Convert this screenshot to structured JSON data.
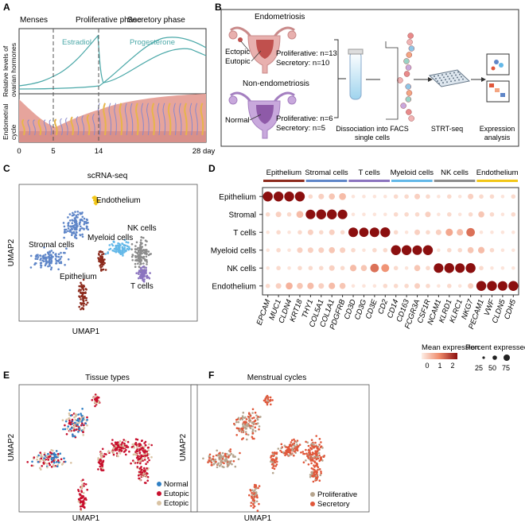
{
  "panels": {
    "A": {
      "letter": "A",
      "phases": [
        "Menses",
        "Proliferative phase",
        "Secretory phase"
      ],
      "hormones": [
        "Estradiol",
        "Progesterone"
      ],
      "y_label_top": [
        "Relative levels of",
        "ovarian hormones"
      ],
      "y_label_bottom": [
        "Endometrial",
        "cycle"
      ],
      "x_ticks": [
        "0",
        "5",
        "14",
        "28 day"
      ],
      "colors": {
        "hormone": "#4aa8a8",
        "tissue": "#d9908a",
        "vessel": "#8888cc",
        "gland": "#e7b54a"
      }
    },
    "B": {
      "letter": "B",
      "endo_title": "Endometriosis",
      "endo_labels": [
        "Ectopic",
        "Eutopic"
      ],
      "endo_counts": [
        "Proliferative: n=13",
        "Secretory: n=10"
      ],
      "non_title": "Non-endometriosis",
      "non_label": "Normal",
      "non_counts": [
        "Proliferative: n=6",
        "Secretory: n=5"
      ],
      "steps": [
        [
          "Dissociation into FACS",
          "single cells"
        ],
        [
          "STRT-seq"
        ],
        [
          "Expression",
          "analysis"
        ]
      ]
    },
    "C": {
      "letter": "C",
      "title": "scRNA-seq",
      "xlabel": "UMAP1",
      "ylabel": "UMAP2",
      "clusters": [
        {
          "label": "Endothelium",
          "color": "#f2c618"
        },
        {
          "label": "NK cells",
          "color": "#8c8c8c"
        },
        {
          "label": "Myeloid cells",
          "color": "#63b8e8"
        },
        {
          "label": "Stromal cells",
          "color": "#5f86c8"
        },
        {
          "label": "Epithelium",
          "color": "#8c2a1c"
        },
        {
          "label": "T cells",
          "color": "#8b74bf"
        }
      ]
    },
    "D": {
      "letter": "D",
      "colorbar_title": "Mean expression",
      "colorbar_ticks": [
        "0",
        "1",
        "2"
      ],
      "size_title": "Percent expressed",
      "size_ticks": [
        "25",
        "50",
        "75"
      ]
    },
    "E": {
      "letter": "E",
      "title": "Tissue types",
      "xlabel": "UMAP1",
      "ylabel": "UMAP2",
      "legend": [
        {
          "label": "Normal",
          "color": "#2f7fc4"
        },
        {
          "label": "Eutopic",
          "color": "#c8102e"
        },
        {
          "label": "Ectopic",
          "color": "#d9c3a3"
        }
      ]
    },
    "F": {
      "letter": "F",
      "title": "Menstrual cycles",
      "xlabel": "UMAP1",
      "ylabel": "UMAP2",
      "legend": [
        {
          "label": "Proliferative",
          "color": "#b5a48e"
        },
        {
          "label": "Secretory",
          "color": "#e0573a"
        }
      ]
    }
  },
  "chart_data": {
    "type": "dotplot",
    "groups": [
      {
        "name": "Epithelium",
        "color": "#8c2a1c",
        "genes": 4
      },
      {
        "name": "Stromal cells",
        "color": "#5f86c8",
        "genes": 4
      },
      {
        "name": "T cells",
        "color": "#8b74bf",
        "genes": 4
      },
      {
        "name": "Myeloid cells",
        "color": "#63b8e8",
        "genes": 4
      },
      {
        "name": "NK cells",
        "color": "#8c8c8c",
        "genes": 4
      },
      {
        "name": "Endothelium",
        "color": "#f2c618",
        "genes": 4
      }
    ],
    "genes": [
      "EPCAM",
      "MUC1",
      "CLDN4",
      "KRT18",
      "THY1",
      "COL5A1",
      "COL1A1",
      "PDGFRB",
      "CD3D",
      "CD3G",
      "CD3E",
      "CD2",
      "CD14",
      "CD163",
      "FCGR3A",
      "CSF1R",
      "NCAM1",
      "KLRD1",
      "KLRC1",
      "NKG7",
      "PECAM1",
      "VWF",
      "CLDN5",
      "CDH5"
    ],
    "cell_types": [
      "Epithelium",
      "Stromal",
      "T cells",
      "Myeloid cells",
      "NK cells",
      "Endothelium"
    ],
    "expression": [
      [
        2.2,
        2.3,
        2.2,
        2.3,
        0.2,
        0.3,
        0.4,
        0.5,
        0.1,
        0.1,
        0.1,
        0.1,
        0.2,
        0.2,
        0.3,
        0.2,
        0.1,
        0.2,
        0.1,
        0.3,
        0.2,
        0.2,
        0.1,
        0.2
      ],
      [
        0.2,
        0.3,
        0.2,
        0.5,
        2.1,
        2.3,
        2.2,
        2.1,
        0.1,
        0.1,
        0.1,
        0.1,
        0.2,
        0.2,
        0.2,
        0.3,
        0.1,
        0.2,
        0.1,
        0.2,
        0.4,
        0.2,
        0.1,
        0.2
      ],
      [
        0.1,
        0.2,
        0.1,
        0.2,
        0.3,
        0.2,
        0.3,
        0.2,
        2.1,
        2.0,
        2.1,
        2.2,
        0.2,
        0.1,
        0.3,
        0.2,
        0.3,
        0.7,
        0.5,
        1.2,
        0.1,
        0.1,
        0.1,
        0.1
      ],
      [
        0.1,
        0.2,
        0.1,
        0.3,
        0.3,
        0.3,
        0.4,
        0.3,
        0.2,
        0.1,
        0.2,
        0.2,
        2.2,
        2.2,
        2.1,
        2.2,
        0.1,
        0.2,
        0.2,
        0.4,
        0.5,
        0.2,
        0.1,
        0.1
      ],
      [
        0.1,
        0.2,
        0.1,
        0.2,
        0.2,
        0.2,
        0.3,
        0.2,
        0.5,
        0.4,
        1.2,
        0.9,
        0.2,
        0.1,
        0.4,
        0.2,
        2.1,
        2.3,
        2.2,
        2.3,
        0.2,
        0.1,
        0.1,
        0.1
      ],
      [
        0.2,
        0.3,
        0.6,
        0.4,
        0.5,
        0.3,
        0.5,
        0.4,
        0.1,
        0.1,
        0.1,
        0.2,
        0.2,
        0.2,
        0.3,
        0.2,
        0.1,
        0.2,
        0.1,
        0.3,
        2.2,
        2.3,
        2.1,
        2.2
      ]
    ],
    "percent": [
      [
        85,
        85,
        85,
        85,
        10,
        20,
        25,
        35,
        5,
        5,
        5,
        5,
        10,
        10,
        20,
        10,
        5,
        10,
        5,
        20,
        10,
        10,
        5,
        10
      ],
      [
        10,
        20,
        10,
        35,
        80,
        85,
        85,
        80,
        5,
        5,
        5,
        5,
        10,
        10,
        10,
        20,
        5,
        10,
        5,
        10,
        25,
        10,
        5,
        10
      ],
      [
        5,
        10,
        5,
        10,
        20,
        10,
        20,
        10,
        80,
        75,
        80,
        85,
        10,
        5,
        20,
        10,
        20,
        40,
        30,
        60,
        5,
        5,
        5,
        5
      ],
      [
        5,
        10,
        5,
        20,
        20,
        20,
        25,
        20,
        10,
        5,
        10,
        10,
        85,
        85,
        80,
        85,
        5,
        10,
        10,
        25,
        30,
        10,
        5,
        5
      ],
      [
        5,
        10,
        5,
        10,
        10,
        10,
        20,
        10,
        30,
        25,
        60,
        50,
        10,
        5,
        25,
        10,
        80,
        85,
        80,
        85,
        10,
        5,
        5,
        5
      ],
      [
        10,
        20,
        35,
        25,
        30,
        20,
        30,
        25,
        5,
        5,
        5,
        10,
        10,
        10,
        20,
        10,
        5,
        10,
        5,
        20,
        85,
        85,
        80,
        85
      ]
    ],
    "colorbar_range": [
      0,
      2
    ],
    "size_levels": [
      25,
      50,
      75
    ]
  }
}
